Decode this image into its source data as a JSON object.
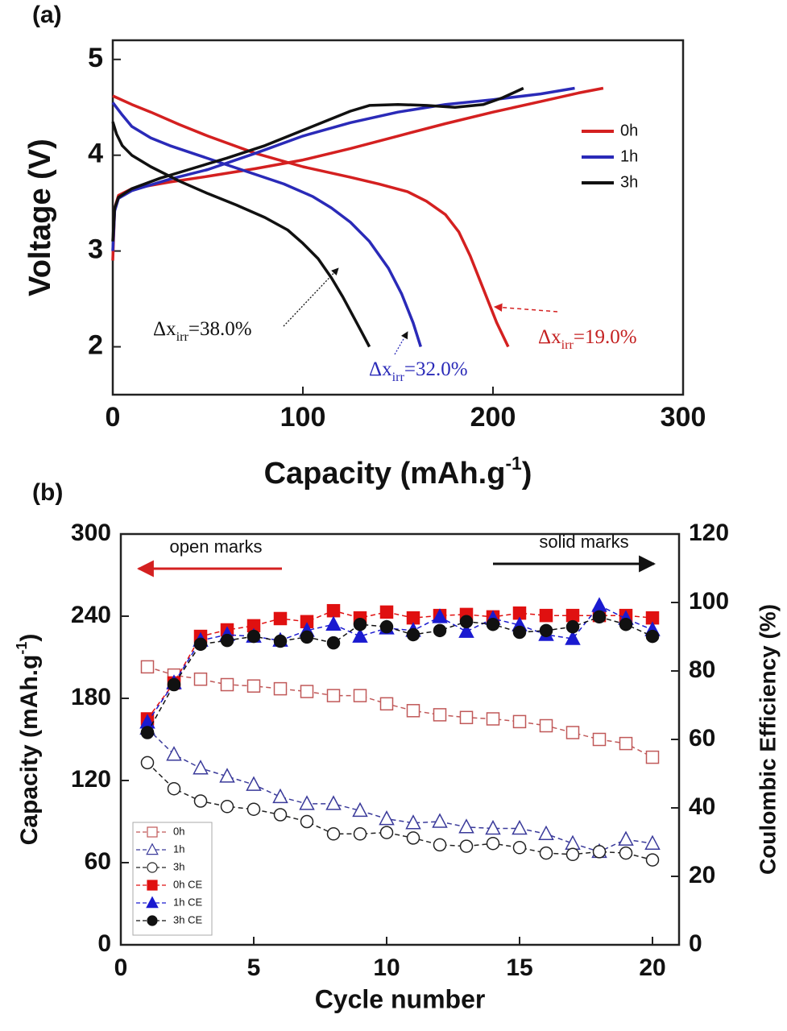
{
  "chart_data": [
    {
      "type": "line",
      "panel": "(a)",
      "xlabel": {
        "text": "Capacity (mAh.g",
        "sup": "-1",
        "tail": ")"
      },
      "ylabel": "Voltage (V)",
      "xlim": [
        0,
        300
      ],
      "xticks": [
        0,
        100,
        200,
        300
      ],
      "ylim": [
        1.5,
        5.2
      ],
      "yticks": [
        2,
        3,
        4,
        5
      ],
      "legend": "upper right",
      "series": [
        {
          "name": "0h",
          "color": "#d42020",
          "curves": [
            {
              "x": [
                0,
                1,
                3,
                10,
                30,
                50,
                75,
                100,
                125,
                150,
                175,
                200,
                225,
                245,
                258
              ],
              "values": [
                2.9,
                3.45,
                3.58,
                3.65,
                3.72,
                3.78,
                3.86,
                3.95,
                4.07,
                4.2,
                4.33,
                4.45,
                4.56,
                4.65,
                4.7
              ]
            },
            {
              "x": [
                0,
                10,
                20,
                35,
                50,
                75,
                100,
                125,
                140,
                155,
                165,
                175,
                182,
                188,
                195,
                202,
                208
              ],
              "values": [
                4.62,
                4.53,
                4.45,
                4.32,
                4.2,
                4.02,
                3.88,
                3.77,
                3.7,
                3.62,
                3.52,
                3.38,
                3.2,
                2.95,
                2.6,
                2.25,
                2.0
              ]
            }
          ]
        },
        {
          "name": "1h",
          "color": "#2a2ab8",
          "curves": [
            {
              "x": [
                0,
                1,
                3,
                10,
                30,
                50,
                75,
                100,
                125,
                150,
                175,
                200,
                225,
                243
              ],
              "values": [
                3.0,
                3.42,
                3.55,
                3.63,
                3.75,
                3.85,
                4.02,
                4.2,
                4.34,
                4.45,
                4.53,
                4.58,
                4.64,
                4.7
              ]
            },
            {
              "x": [
                0,
                5,
                10,
                20,
                30,
                45,
                60,
                75,
                90,
                105,
                115,
                125,
                135,
                145,
                152,
                158,
                162
              ],
              "values": [
                4.55,
                4.42,
                4.3,
                4.18,
                4.1,
                4.0,
                3.9,
                3.8,
                3.7,
                3.57,
                3.45,
                3.3,
                3.1,
                2.82,
                2.55,
                2.25,
                2.0
              ]
            }
          ]
        },
        {
          "name": "3h",
          "color": "#111111",
          "curves": [
            {
              "x": [
                0,
                1,
                3,
                10,
                25,
                40,
                60,
                80,
                100,
                115,
                125,
                135,
                150,
                165,
                180,
                195,
                205,
                216
              ],
              "values": [
                3.1,
                3.45,
                3.56,
                3.65,
                3.76,
                3.85,
                3.97,
                4.1,
                4.26,
                4.38,
                4.46,
                4.52,
                4.53,
                4.52,
                4.5,
                4.53,
                4.6,
                4.7
              ]
            },
            {
              "x": [
                0,
                2,
                5,
                10,
                20,
                35,
                50,
                65,
                80,
                92,
                100,
                108,
                115,
                121,
                127,
                131,
                135
              ],
              "values": [
                4.35,
                4.22,
                4.1,
                4.0,
                3.88,
                3.73,
                3.6,
                3.48,
                3.35,
                3.22,
                3.08,
                2.92,
                2.72,
                2.52,
                2.3,
                2.15,
                2.0
              ]
            }
          ]
        }
      ],
      "annotations": [
        {
          "text": "Δx",
          "sub": "irr",
          "tail": "=38.0%",
          "color": "#111111"
        },
        {
          "text": "Δx",
          "sub": "irr",
          "tail": "=32.0%",
          "color": "#2a2ab8"
        },
        {
          "text": "Δx",
          "sub": "irr",
          "tail": "=19.0%",
          "color": "#c42020"
        }
      ]
    },
    {
      "type": "line",
      "panel": "(b)",
      "xlabel": "Cycle number",
      "ylabel": {
        "text": "Capacity (mAh.g",
        "sup": "-1",
        "tail": ")"
      },
      "y2label": "Coulombic Efficiency (%)",
      "xlim": [
        0,
        21
      ],
      "xticks": [
        0,
        5,
        10,
        15,
        20
      ],
      "ylim": [
        0,
        300
      ],
      "yticks": [
        0,
        60,
        120,
        180,
        240,
        300
      ],
      "y2lim": [
        0,
        120
      ],
      "y2ticks": [
        0,
        20,
        40,
        60,
        80,
        100,
        120
      ],
      "legend": "lower left",
      "notes": [
        {
          "text": "open marks",
          "color": "#c42020"
        },
        {
          "text": "solid marks",
          "color": "#111111"
        }
      ],
      "x": [
        1,
        2,
        3,
        4,
        5,
        6,
        7,
        8,
        9,
        10,
        11,
        12,
        13,
        14,
        15,
        16,
        17,
        18,
        19,
        20
      ],
      "series": [
        {
          "name": "0h",
          "color": "#c05858",
          "marker": "square",
          "filled": false,
          "values": [
            203,
            197,
            194,
            190,
            189,
            187,
            185,
            182,
            182,
            176,
            171,
            168,
            166,
            165,
            163,
            160,
            155,
            150,
            147,
            137
          ]
        },
        {
          "name": "1h",
          "color": "#3a3a9a",
          "marker": "triangle",
          "filled": false,
          "values": [
            158,
            139,
            129,
            123,
            117,
            108,
            103,
            103,
            98,
            92,
            89,
            90,
            86,
            85,
            85,
            81,
            74,
            68,
            77,
            74
          ]
        },
        {
          "name": "3h",
          "color": "#222222",
          "marker": "circle",
          "filled": false,
          "values": [
            133,
            114,
            105,
            101,
            99,
            95,
            90,
            81,
            81,
            82,
            78,
            73,
            72,
            74,
            71,
            67,
            66,
            68,
            67,
            62
          ]
        },
        {
          "name": "0h CE",
          "color": "#e01010",
          "marker": "square",
          "filled": true,
          "axis": "y2",
          "values": [
            66,
            76.5,
            90.1,
            92,
            93.2,
            95.3,
            94.4,
            97.6,
            95.5,
            97.2,
            95.5,
            96.2,
            96.5,
            95.8,
            96.9,
            96.2,
            96.2,
            96.2,
            96.2,
            95.5
          ]
        },
        {
          "name": "1h CE",
          "color": "#1a1ad0",
          "marker": "triangle",
          "filled": true,
          "axis": "y2",
          "values": [
            65,
            76.5,
            88.9,
            90.6,
            90.1,
            88.9,
            91.8,
            93.6,
            90.1,
            92.5,
            91.8,
            95.8,
            91.5,
            95.3,
            93.4,
            90.6,
            89.4,
            99.1,
            95.3,
            92
          ]
        },
        {
          "name": "3h CE",
          "color": "#111111",
          "marker": "circle",
          "filled": true,
          "axis": "y2",
          "values": [
            62,
            76,
            87.8,
            88.9,
            90.1,
            88.7,
            89.9,
            88.2,
            93.6,
            92.9,
            90.6,
            91.8,
            94.4,
            93.6,
            91.3,
            91.8,
            92.9,
            95.8,
            93.6,
            90.1
          ]
        }
      ]
    }
  ]
}
